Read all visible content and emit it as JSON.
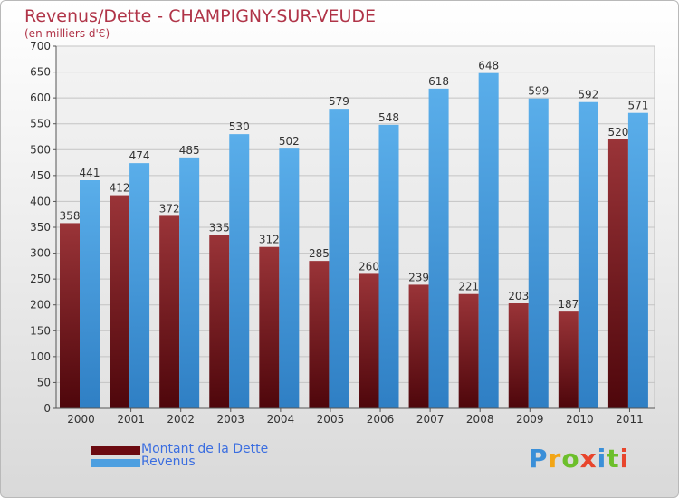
{
  "title": "Revenus/Dette - CHAMPIGNY-SUR-VEUDE",
  "subtitle": "(en milliers d'€)",
  "logo_text": "Proxiti",
  "colors": {
    "title": "#b03448",
    "dette": "#7a1a1f",
    "revenus": "#4d9fe0",
    "legend_text": "#3b6ee0"
  },
  "chart_data": {
    "type": "bar",
    "categories": [
      "2000",
      "2001",
      "2002",
      "2003",
      "2004",
      "2005",
      "2006",
      "2007",
      "2008",
      "2009",
      "2010",
      "2011"
    ],
    "series": [
      {
        "name": "Montant de la Dette",
        "values": [
          358,
          412,
          372,
          335,
          312,
          285,
          260,
          239,
          221,
          203,
          187,
          520
        ]
      },
      {
        "name": "Revenus",
        "values": [
          441,
          474,
          485,
          530,
          502,
          579,
          548,
          618,
          648,
          599,
          592,
          571
        ]
      }
    ],
    "ylim": [
      0,
      700
    ],
    "yticks": [
      "0",
      "50",
      "100",
      "150",
      "200",
      "250",
      "300",
      "350",
      "400",
      "450",
      "500",
      "550",
      "600",
      "650",
      "700"
    ],
    "grid": true,
    "legend_position": "bottom-left"
  }
}
